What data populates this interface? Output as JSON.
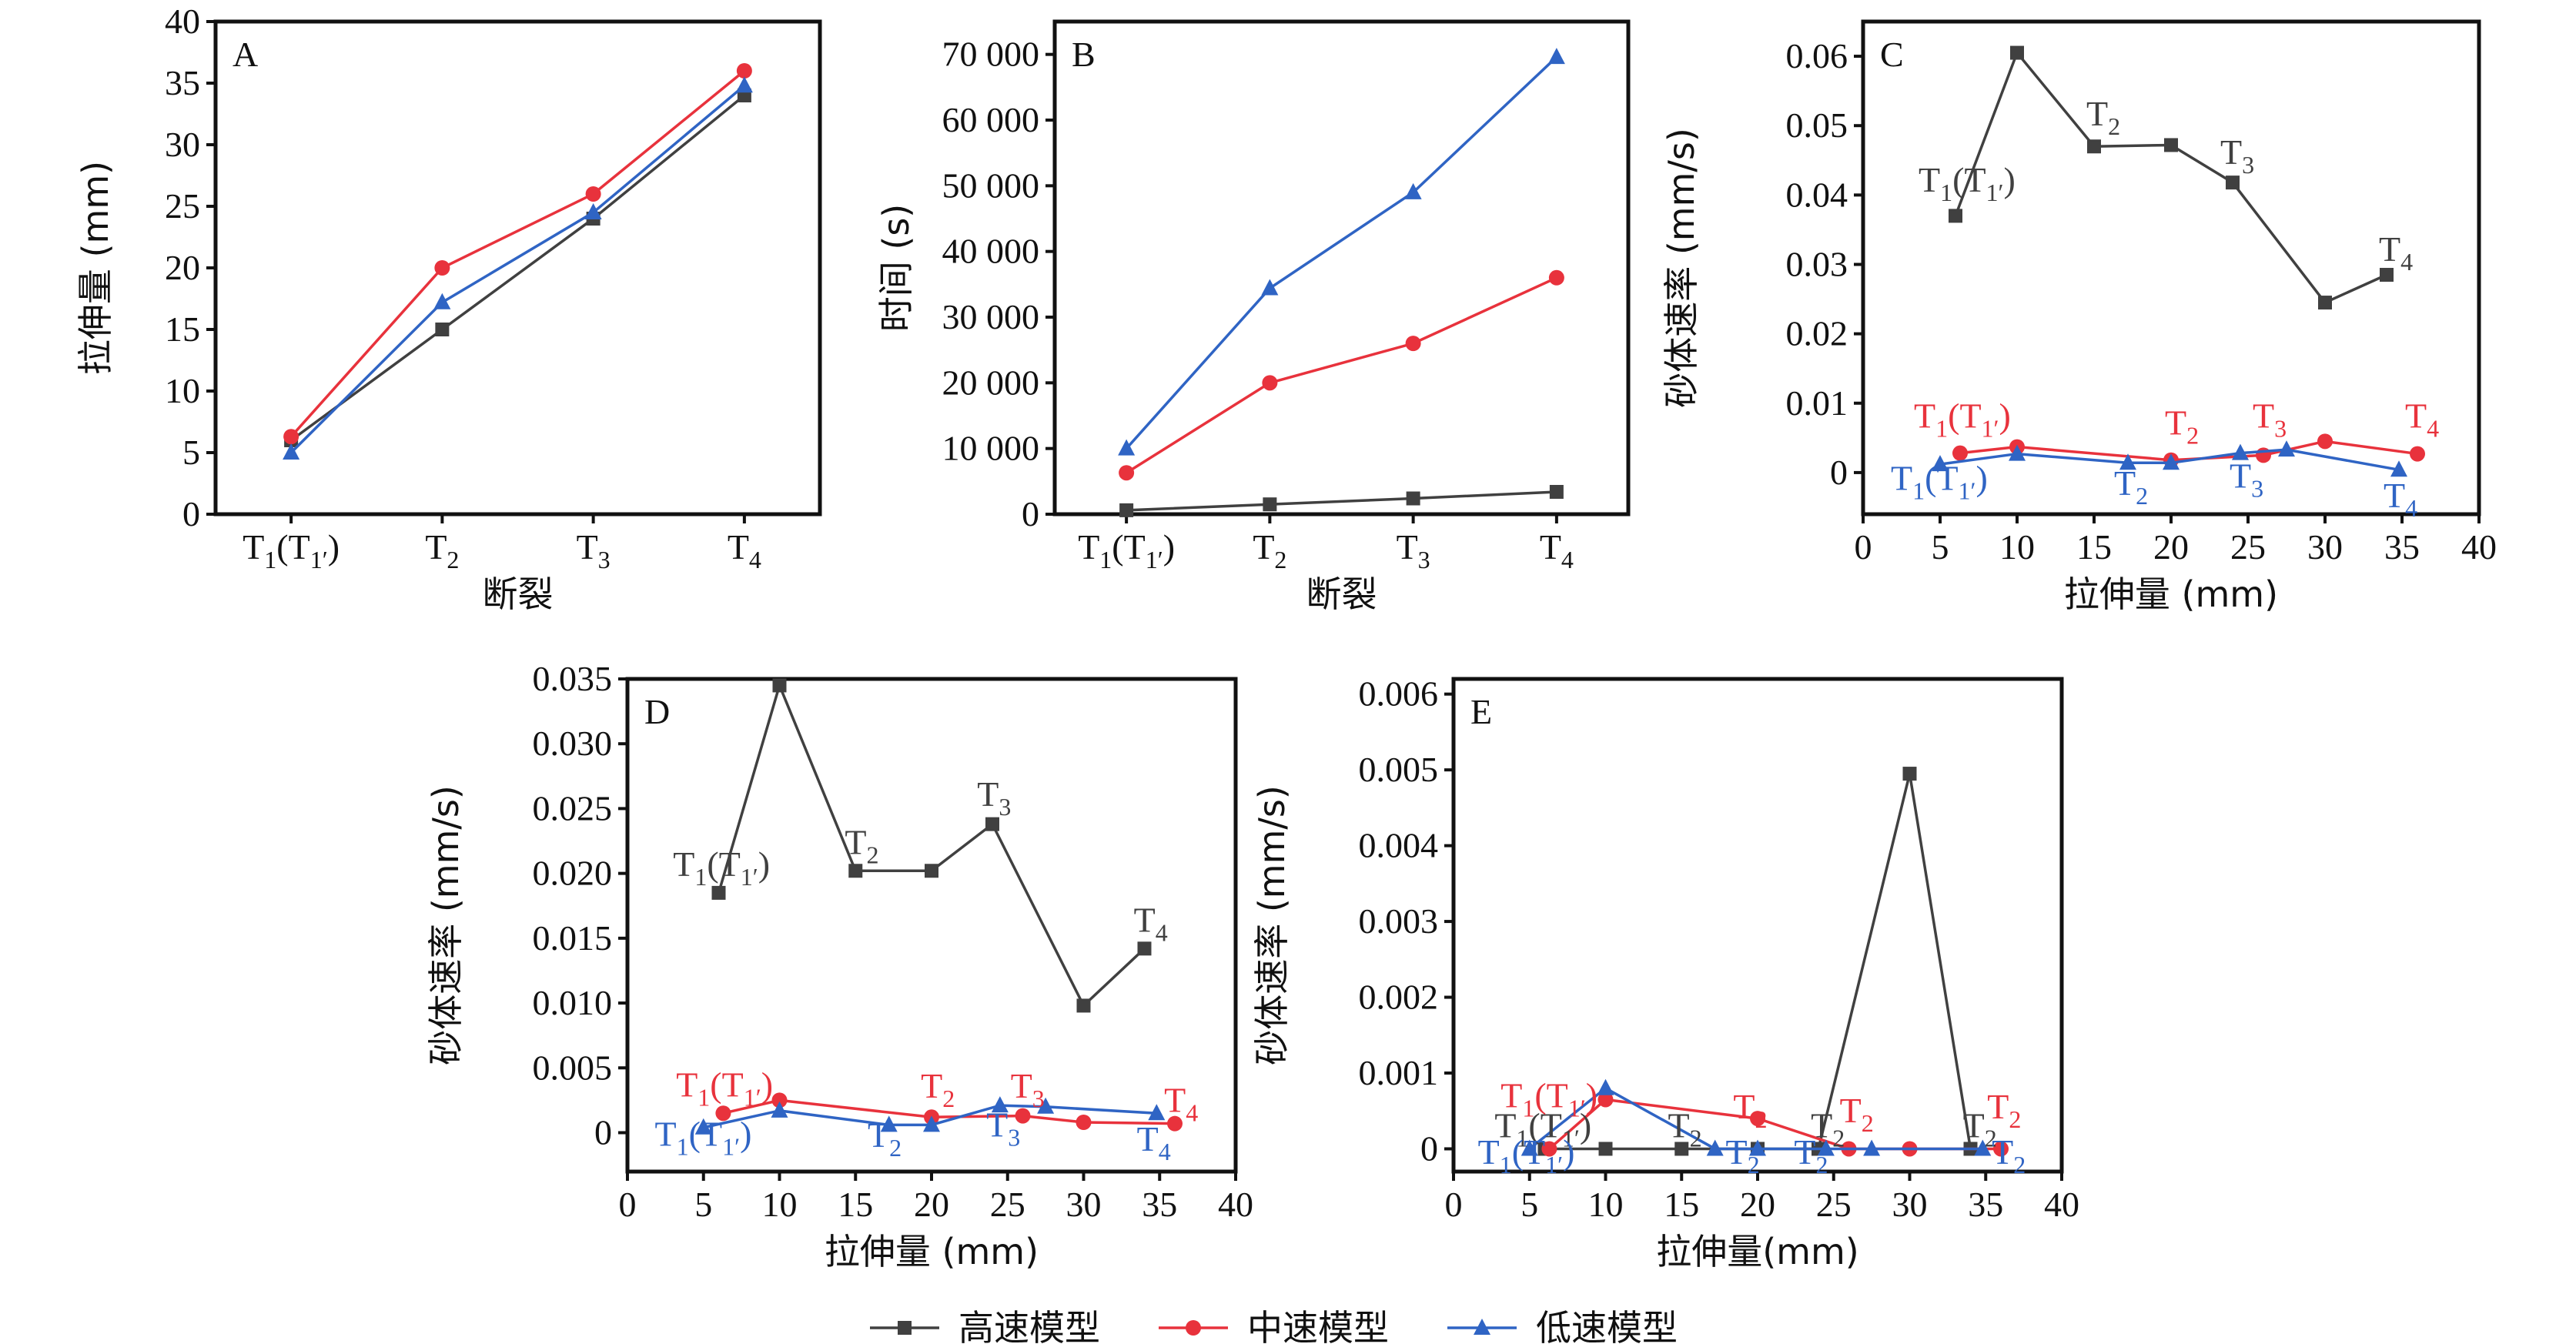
{
  "colors": {
    "high": "#404040",
    "mid": "#e8323c",
    "low": "#2f64c4"
  },
  "legend": [
    {
      "key": "high",
      "label": "高速模型",
      "marker": "square"
    },
    {
      "key": "mid",
      "label": "中速模型",
      "marker": "circle"
    },
    {
      "key": "low",
      "label": "低速模型",
      "marker": "triangle"
    }
  ],
  "chart_data": [
    {
      "panel": "A",
      "type": "line",
      "xlabel": "断裂",
      "ylabel": "拉伸量 (mm)",
      "categories": [
        "T1(T1')",
        "T2",
        "T3",
        "T4"
      ],
      "ylim": [
        0,
        40
      ],
      "yticks": [
        0,
        5,
        10,
        15,
        20,
        25,
        30,
        35,
        40
      ],
      "series": [
        {
          "name": "高速模型",
          "key": "high",
          "values": [
            6,
            15,
            24,
            34
          ]
        },
        {
          "name": "中速模型",
          "key": "mid",
          "values": [
            6.3,
            20,
            26,
            36
          ]
        },
        {
          "name": "低速模型",
          "key": "low",
          "values": [
            5,
            17.2,
            24.5,
            34.8
          ]
        }
      ]
    },
    {
      "panel": "B",
      "type": "line",
      "xlabel": "断裂",
      "ylabel": "时间 (s)",
      "categories": [
        "T1(T1')",
        "T2",
        "T3",
        "T4"
      ],
      "ylim": [
        0,
        75000
      ],
      "yticks": [
        0,
        10000,
        20000,
        30000,
        40000,
        50000,
        60000,
        70000
      ],
      "ytick_labels": [
        "0",
        "10 000",
        "20 000",
        "30 000",
        "40 000",
        "50 000",
        "60 000",
        "70 000"
      ],
      "series": [
        {
          "name": "高速模型",
          "key": "high",
          "values": [
            600,
            1500,
            2400,
            3400
          ]
        },
        {
          "name": "中速模型",
          "key": "mid",
          "values": [
            6300,
            20000,
            26000,
            36000
          ]
        },
        {
          "name": "低速模型",
          "key": "low",
          "values": [
            10000,
            34400,
            49000,
            69600
          ]
        }
      ]
    },
    {
      "panel": "C",
      "type": "line",
      "xlabel": "拉伸量 (mm)",
      "ylabel": "砂体速率 (mm/s)",
      "xlim": [
        0,
        40
      ],
      "xticks": [
        0,
        5,
        10,
        15,
        20,
        25,
        30,
        35,
        40
      ],
      "ylim": [
        -0.006,
        0.065
      ],
      "yticks": [
        0,
        0.01,
        0.02,
        0.03,
        0.04,
        0.05,
        0.06
      ],
      "ytick_labels": [
        "0",
        "0.01",
        "0.02",
        "0.03",
        "0.04",
        "0.05",
        "0.06"
      ],
      "series": [
        {
          "name": "高速模型",
          "key": "high",
          "x": [
            6,
            10,
            15,
            20,
            24,
            30,
            34
          ],
          "y": [
            0.037,
            0.0605,
            0.047,
            0.0472,
            0.0418,
            0.0245,
            0.0285
          ]
        },
        {
          "name": "中速模型",
          "key": "mid",
          "x": [
            6.3,
            10,
            20,
            26,
            30,
            36
          ],
          "y": [
            0.0028,
            0.0037,
            0.0018,
            0.0025,
            0.0045,
            0.0027
          ]
        },
        {
          "name": "低速模型",
          "key": "low",
          "x": [
            5,
            10,
            17.2,
            20,
            24.5,
            27.5,
            34.8
          ],
          "y": [
            0.0012,
            0.0027,
            0.0014,
            0.0014,
            0.0028,
            0.0033,
            0.0004
          ]
        }
      ],
      "annotations": [
        {
          "text": "T1(T1')",
          "series": "high",
          "x": 3.6,
          "y": 0.0405
        },
        {
          "text": "T2",
          "series": "high",
          "x": 14.5,
          "y": 0.05
        },
        {
          "text": "T3",
          "series": "high",
          "x": 23.2,
          "y": 0.0445
        },
        {
          "text": "T4",
          "series": "high",
          "x": 33.5,
          "y": 0.0305
        },
        {
          "text": "T1(T1')",
          "series": "mid",
          "x": 3.3,
          "y": 0.0065
        },
        {
          "text": "T2",
          "series": "mid",
          "x": 19.6,
          "y": 0.0055
        },
        {
          "text": "T3",
          "series": "mid",
          "x": 25.3,
          "y": 0.0065
        },
        {
          "text": "T4",
          "series": "mid",
          "x": 35.2,
          "y": 0.0065
        },
        {
          "text": "T1(T1')",
          "series": "low",
          "x": 1.8,
          "y": -0.0025
        },
        {
          "text": "T2",
          "series": "low",
          "x": 16.3,
          "y": -0.0032
        },
        {
          "text": "T3",
          "series": "low",
          "x": 23.8,
          "y": -0.0022
        },
        {
          "text": "T4",
          "series": "low",
          "x": 33.8,
          "y": -0.005
        }
      ]
    },
    {
      "panel": "D",
      "type": "line",
      "xlabel": "拉伸量 (mm)",
      "ylabel": "砂体速率 (mm/s)",
      "xlim": [
        0,
        40
      ],
      "xticks": [
        0,
        5,
        10,
        15,
        20,
        25,
        30,
        35,
        40
      ],
      "ylim": [
        -0.003,
        0.035
      ],
      "yticks": [
        0,
        0.005,
        0.01,
        0.015,
        0.02,
        0.025,
        0.03,
        0.035
      ],
      "ytick_labels": [
        "0",
        "0.005",
        "0.010",
        "0.015",
        "0.020",
        "0.025",
        "0.030",
        "0.035"
      ],
      "series": [
        {
          "name": "高速模型",
          "key": "high",
          "x": [
            6,
            10,
            15,
            20,
            24,
            30,
            34
          ],
          "y": [
            0.0185,
            0.0345,
            0.0202,
            0.0202,
            0.0238,
            0.0098,
            0.0142
          ]
        },
        {
          "name": "中速模型",
          "key": "mid",
          "x": [
            6.3,
            10,
            20,
            26,
            30,
            36
          ],
          "y": [
            0.0015,
            0.0025,
            0.0012,
            0.0013,
            0.0008,
            0.0007
          ]
        },
        {
          "name": "低速模型",
          "key": "low",
          "x": [
            5,
            10,
            17.2,
            20,
            24.5,
            27.5,
            34.8
          ],
          "y": [
            0.0004,
            0.0017,
            0.0006,
            0.0006,
            0.0021,
            0.002,
            0.0015
          ]
        }
      ],
      "annotations": [
        {
          "text": "T1(T1')",
          "series": "high",
          "x": 3,
          "y": 0.0198
        },
        {
          "text": "T2",
          "series": "high",
          "x": 14.3,
          "y": 0.0215
        },
        {
          "text": "T3",
          "series": "high",
          "x": 23,
          "y": 0.0252
        },
        {
          "text": "T4",
          "series": "high",
          "x": 33.3,
          "y": 0.0155
        },
        {
          "text": "T1(T1')",
          "series": "mid",
          "x": 3.2,
          "y": 0.0028
        },
        {
          "text": "T2",
          "series": "mid",
          "x": 19.3,
          "y": 0.0027
        },
        {
          "text": "T3",
          "series": "mid",
          "x": 25.2,
          "y": 0.0027
        },
        {
          "text": "T4",
          "series": "mid",
          "x": 35.3,
          "y": 0.0016
        },
        {
          "text": "T1(T1')",
          "series": "low",
          "x": 1.8,
          "y": -0.001
        },
        {
          "text": "T2",
          "series": "low",
          "x": 15.8,
          "y": -0.0011
        },
        {
          "text": "T3",
          "series": "low",
          "x": 23.6,
          "y": -0.0003
        },
        {
          "text": "T4",
          "series": "low",
          "x": 33.5,
          "y": -0.0014
        }
      ]
    },
    {
      "panel": "E",
      "type": "line",
      "xlabel": "拉伸量(mm)",
      "ylabel": "砂体速率 (mm/s)",
      "xlim": [
        0,
        40
      ],
      "xticks": [
        0,
        5,
        10,
        15,
        20,
        25,
        30,
        35,
        40
      ],
      "ylim": [
        -0.0003,
        0.0062
      ],
      "yticks": [
        0,
        0.001,
        0.002,
        0.003,
        0.004,
        0.005,
        0.006
      ],
      "ytick_labels": [
        "0",
        "0.001",
        "0.002",
        "0.003",
        "0.004",
        "0.005",
        "0.006"
      ],
      "series": [
        {
          "name": "高速模型",
          "key": "high",
          "x": [
            6,
            10,
            15,
            20,
            24,
            30,
            34
          ],
          "y": [
            0,
            0,
            0,
            0,
            0,
            0.00495,
            0
          ]
        },
        {
          "name": "中速模型",
          "key": "mid",
          "x": [
            6.3,
            10,
            20,
            26,
            30,
            36
          ],
          "y": [
            0,
            0.00065,
            0.0004,
            0,
            0,
            0
          ]
        },
        {
          "name": "低速模型",
          "key": "low",
          "x": [
            5,
            10,
            17.2,
            20,
            24.5,
            27.5,
            34.8
          ],
          "y": [
            0,
            0.0008,
            0,
            0,
            0,
            0,
            0
          ]
        }
      ],
      "annotations": [
        {
          "text": "T1(T1')",
          "series": "high",
          "x": 2.7,
          "y": 0.00015
        },
        {
          "text": "T2",
          "series": "high",
          "x": 14.1,
          "y": 0.00015
        },
        {
          "text": "T2",
          "series": "high",
          "x": 23.5,
          "y": 0.00015
        },
        {
          "text": "T2",
          "series": "high",
          "x": 33.5,
          "y": 0.00015
        },
        {
          "text": "T1(T1')",
          "series": "mid",
          "x": 3.1,
          "y": 0.00055
        },
        {
          "text": "T2",
          "series": "mid",
          "x": 18.4,
          "y": 0.0004
        },
        {
          "text": "T2",
          "series": "mid",
          "x": 25.4,
          "y": 0.00035
        },
        {
          "text": "T2",
          "series": "mid",
          "x": 35.1,
          "y": 0.0004
        },
        {
          "text": "T1(T1')",
          "series": "low",
          "x": 1.6,
          "y": -0.0002
        },
        {
          "text": "T2",
          "series": "low",
          "x": 17.9,
          "y": -0.0002
        },
        {
          "text": "T2",
          "series": "low",
          "x": 22.4,
          "y": -0.0002
        },
        {
          "text": "T2",
          "series": "low",
          "x": 35.4,
          "y": -0.0002
        }
      ]
    }
  ]
}
